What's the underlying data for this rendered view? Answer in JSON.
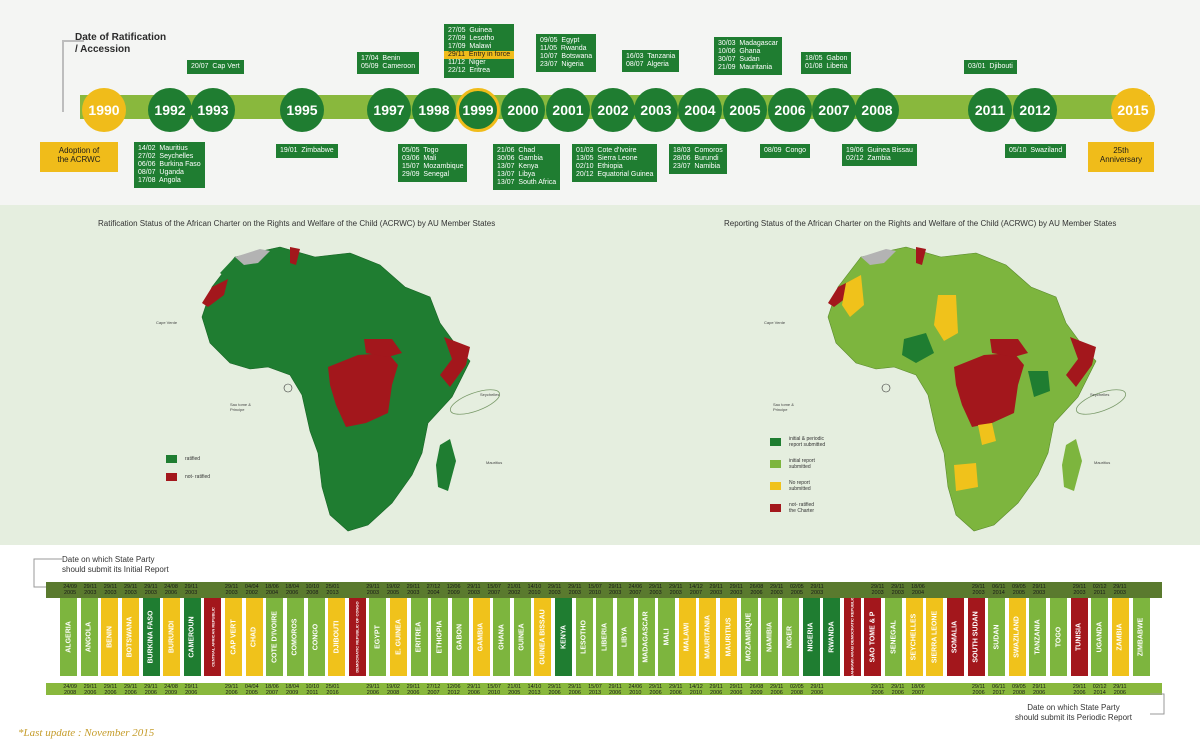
{
  "timeline": {
    "title": "Date of Ratification\n/ Accession",
    "years": [
      {
        "label": "1990",
        "style": "gold"
      },
      {
        "label": "1992",
        "style": "green"
      },
      {
        "label": "1993",
        "style": "green"
      },
      {
        "label": "1995",
        "style": "green"
      },
      {
        "label": "1997",
        "style": "green"
      },
      {
        "label": "1998",
        "style": "green"
      },
      {
        "label": "1999",
        "style": "ring"
      },
      {
        "label": "2000",
        "style": "green"
      },
      {
        "label": "2001",
        "style": "green"
      },
      {
        "label": "2002",
        "style": "green"
      },
      {
        "label": "2003",
        "style": "green"
      },
      {
        "label": "2004",
        "style": "green"
      },
      {
        "label": "2005",
        "style": "green"
      },
      {
        "label": "2006",
        "style": "green"
      },
      {
        "label": "2007",
        "style": "green"
      },
      {
        "label": "2008",
        "style": "green"
      },
      {
        "label": "2011",
        "style": "green"
      },
      {
        "label": "2012",
        "style": "green"
      },
      {
        "label": "2015",
        "style": "gold"
      }
    ],
    "adoption": "Adoption of\nthe ACRWC",
    "anniversary": "25th\nAnniversary",
    "boxes": {
      "1992": "14/02  Mauritius\n27/02  Seychelles\n06/06  Burkina Faso\n08/07  Uganda\n17/08  Angola",
      "1993": "20/07  Cap Vert",
      "1995": "19/01  Zimbabwe",
      "1997": "17/04  Benin\n05/09  Cameroon",
      "1998": "05/05  Togo\n03/06  Mali\n15/07  Mozambique\n29/09  Senegal",
      "1999_top_1": "27/05  Guinea\n27/09  Lesotho\n17/09  Malawi",
      "1999_hl": "29/11  Entry in force",
      "1999_top_2": "11/12  Niger\n22/12  Eritrea",
      "2000": "21/06  Chad\n30/06  Gambia\n13/07  Kenya\n13/07  Libya\n13/07  South Africa",
      "2001": "09/05  Egypt\n11/05  Rwanda\n10/07  Botswana\n23/07  Nigeria",
      "2002": "01/03  Cote d'Ivoire\n13/05  Sierra Leone\n02/10  Ethiopia\n20/12  Equatorial Guinea",
      "2003": "16/03  Tanzania\n08/07  Algeria",
      "2004": "18/03  Comoros\n28/06  Burundi\n23/07  Namibia",
      "2005": "30/03  Madagascar\n10/06  Ghana\n30/07  Sudan\n21/09  Mauritania",
      "2006": "08/09  Congo",
      "2007": "18/05  Gabon\n01/08  Liberia",
      "2008": "19/06  Guinea Bissau\n02/12  Zambia",
      "2011": "03/01  Djibouti",
      "2012": "05/10  Swaziland"
    }
  },
  "maps": {
    "left_title": "Ratification Status of the African Charter on the Rights and Welfare of the Child (ACRWC) by AU Member States",
    "right_title": "Reporting Status of the African Charter on the Rights and  Welfare of the Child (ACRWC) by AU Member States",
    "left_legend": [
      {
        "label": "ratified",
        "color": "#1f7d31"
      },
      {
        "label": "not- ratified",
        "color": "#a3171c"
      }
    ],
    "right_legend": [
      {
        "label": "initial & periodic\nreport submitted",
        "color": "#1f7d31"
      },
      {
        "label": "initial report\nsubmitted",
        "color": "#7db53e"
      },
      {
        "label": "No report\nsubmitted",
        "color": "#f0c21b"
      },
      {
        "label": "not- ratified\nthe Charter",
        "color": "#a3171c"
      }
    ],
    "sao_tome": "Sao tome &\nPrincipe",
    "cap_verde": "Cape Verde",
    "seychelles": "Seychelles",
    "mauritius": "Mauritius"
  },
  "reports": {
    "initial_note": "Date on which State Party\nshould submit its Initial Report",
    "periodic_note": "Date on which State Party\nshould submit its Periodic Report",
    "countries": [
      {
        "name": "ALGERIA",
        "color": "#7db53e",
        "top": "24/09\n2005",
        "bottom": "24/09\n2008"
      },
      {
        "name": "ANGOLA",
        "color": "#7db53e",
        "top": "29/11\n2003",
        "bottom": "29/11\n2006"
      },
      {
        "name": "BENIN",
        "color": "#f0c21b",
        "top": "29/11\n2003",
        "bottom": "29/11\n2006"
      },
      {
        "name": "BOTSWANA",
        "color": "#f0c21b",
        "top": "29/11\n2003",
        "bottom": "29/11\n2006"
      },
      {
        "name": "BURKINA FASO",
        "color": "#1f7d31",
        "top": "29/11\n2003",
        "bottom": "29/11\n2006"
      },
      {
        "name": "BURUNDI",
        "color": "#f0c21b",
        "top": "24/08\n2006",
        "bottom": "24/08\n2009"
      },
      {
        "name": "CAMEROUN",
        "color": "#1f7d31",
        "top": "29/11\n2003",
        "bottom": "29/11\n2006"
      },
      {
        "name": "CENTRAL AFRICAN REPUBLIC",
        "color": "#a3171c",
        "top": "",
        "bottom": ""
      },
      {
        "name": "CAP VERT",
        "color": "#f0c21b",
        "top": "29/11\n2003",
        "bottom": "29/11\n2006"
      },
      {
        "name": "CHAD",
        "color": "#f0c21b",
        "top": "04/04\n2002",
        "bottom": "04/04\n2005"
      },
      {
        "name": "COTE D'IVOIRE",
        "color": "#7db53e",
        "top": "18/06\n2004",
        "bottom": "18/06\n2007"
      },
      {
        "name": "COMOROS",
        "color": "#7db53e",
        "top": "18/04\n2006",
        "bottom": "18/04\n2009"
      },
      {
        "name": "CONGO",
        "color": "#7db53e",
        "top": "10/10\n2008",
        "bottom": "10/10\n2011"
      },
      {
        "name": "DJIBOUTI",
        "color": "#f0c21b",
        "top": "25/01\n2013",
        "bottom": "25/01\n2016"
      },
      {
        "name": "DEMOCRATIC REPUBLIC OF CONGO",
        "color": "#a3171c",
        "top": "",
        "bottom": ""
      },
      {
        "name": "EGYPT",
        "color": "#7db53e",
        "top": "29/11\n2003",
        "bottom": "29/11\n2006"
      },
      {
        "name": "E. GUINEA",
        "color": "#f0c21b",
        "top": "19/02\n2005",
        "bottom": "19/02\n2008"
      },
      {
        "name": "ERITREA",
        "color": "#7db53e",
        "top": "29/11\n2003",
        "bottom": "29/11\n2006"
      },
      {
        "name": "ETHIOPIA",
        "color": "#7db53e",
        "top": "27/12\n2004",
        "bottom": "27/12\n2007"
      },
      {
        "name": "GABON",
        "color": "#7db53e",
        "top": "12/06\n2009",
        "bottom": "12/06\n2012"
      },
      {
        "name": "GAMBIA",
        "color": "#f0c21b",
        "top": "29/11\n2003",
        "bottom": "29/11\n2006"
      },
      {
        "name": "GHANA",
        "color": "#7db53e",
        "top": "15/07\n2007",
        "bottom": "15/07\n2010"
      },
      {
        "name": "GUINEA",
        "color": "#7db53e",
        "top": "21/01\n2002",
        "bottom": "21/01\n2005"
      },
      {
        "name": "GUINEA BISSAU",
        "color": "#f0c21b",
        "top": "14/10\n2010",
        "bottom": "14/10\n2013"
      },
      {
        "name": "KENYA",
        "color": "#1f7d31",
        "top": "29/11\n2003",
        "bottom": "29/11\n2006"
      },
      {
        "name": "LESOTHO",
        "color": "#7db53e",
        "top": "29/11\n2003",
        "bottom": "29/11\n2006"
      },
      {
        "name": "LIBERIA",
        "color": "#7db53e",
        "top": "15/07\n2010",
        "bottom": "15/07\n2013"
      },
      {
        "name": "LIBYA",
        "color": "#7db53e",
        "top": "29/11\n2003",
        "bottom": "29/11\n2006"
      },
      {
        "name": "MADAGASCAR",
        "color": "#7db53e",
        "top": "24/06\n2007",
        "bottom": "24/06\n2010"
      },
      {
        "name": "MALI",
        "color": "#7db53e",
        "top": "29/11\n2003",
        "bottom": "29/11\n2006"
      },
      {
        "name": "MALAWI",
        "color": "#f0c21b",
        "top": "29/11\n2003",
        "bottom": "29/11\n2006"
      },
      {
        "name": "MAURITANIA",
        "color": "#f0c21b",
        "top": "14/12\n2007",
        "bottom": "14/12\n2010"
      },
      {
        "name": "MAURITIUS",
        "color": "#f0c21b",
        "top": "29/11\n2003",
        "bottom": "29/11\n2006"
      },
      {
        "name": "MOZAMBIQUE",
        "color": "#7db53e",
        "top": "29/11\n2003",
        "bottom": "29/11\n2006"
      },
      {
        "name": "NAMIBIA",
        "color": "#7db53e",
        "top": "26/08\n2006",
        "bottom": "26/08\n2009"
      },
      {
        "name": "NIGER",
        "color": "#7db53e",
        "top": "29/11\n2003",
        "bottom": "29/11\n2006"
      },
      {
        "name": "NIGERIA",
        "color": "#1f7d31",
        "top": "02/05\n2005",
        "bottom": "02/05\n2008"
      },
      {
        "name": "RWANDA",
        "color": "#1f7d31",
        "top": "29/11\n2003",
        "bottom": "29/11\n2006"
      },
      {
        "name": "SAHRAWI ARAB DEMOCRATIC REPUBLIC",
        "color": "#a3171c",
        "top": "",
        "bottom": ""
      },
      {
        "name": "SAO TOME & P",
        "color": "#a3171c",
        "top": "",
        "bottom": ""
      },
      {
        "name": "SENEGAL",
        "color": "#7db53e",
        "top": "29/11\n2003",
        "bottom": "29/11\n2006"
      },
      {
        "name": "SEYCHELLES",
        "color": "#f0c21b",
        "top": "29/11\n2003",
        "bottom": "29/11\n2006"
      },
      {
        "name": "SIERRA LEONE",
        "color": "#f0c21b",
        "top": "18/06\n2004",
        "bottom": "18/06\n2007"
      },
      {
        "name": "SOMALIA",
        "color": "#a3171c",
        "top": "",
        "bottom": ""
      },
      {
        "name": "SOUTH SUDAN",
        "color": "#a3171c",
        "top": "",
        "bottom": ""
      },
      {
        "name": "SUDAN",
        "color": "#7db53e",
        "top": "29/11\n2003",
        "bottom": "29/11\n2006"
      },
      {
        "name": "SWAZILAND",
        "color": "#f0c21b",
        "top": "06/11\n2014",
        "bottom": "06/11\n2017"
      },
      {
        "name": "TANZANIA",
        "color": "#7db53e",
        "top": "09/05\n2005",
        "bottom": "09/05\n2008"
      },
      {
        "name": "TOGO",
        "color": "#7db53e",
        "top": "29/11\n2003",
        "bottom": "29/11\n2006"
      },
      {
        "name": "TUNISIA",
        "color": "#a3171c",
        "top": "",
        "bottom": ""
      },
      {
        "name": "UGANDA",
        "color": "#7db53e",
        "top": "29/11\n2003",
        "bottom": "29/11\n2006"
      },
      {
        "name": "ZAMBIA",
        "color": "#f0c21b",
        "top": "02/12\n2011",
        "bottom": "02/12\n2014"
      },
      {
        "name": "ZIMBABWE",
        "color": "#7db53e",
        "top": "29/11\n2003",
        "bottom": "29/11\n2006"
      }
    ]
  },
  "footer": {
    "last_update": "*Last update : November 2015"
  }
}
